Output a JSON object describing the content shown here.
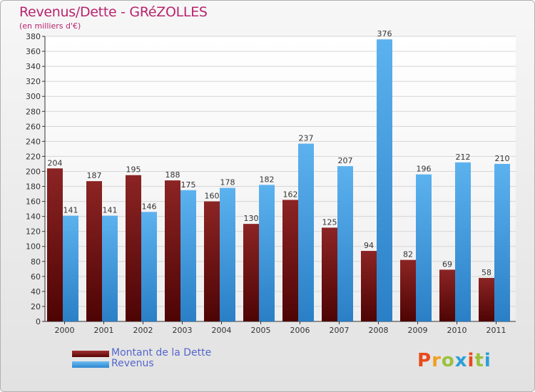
{
  "chart_data": {
    "type": "bar",
    "title": "Revenus/Dette - GRéZOLLES",
    "subtitle": "(en milliers d'€)",
    "categories": [
      "2000",
      "2001",
      "2002",
      "2003",
      "2004",
      "2005",
      "2006",
      "2007",
      "2008",
      "2009",
      "2010",
      "2011"
    ],
    "series": [
      {
        "name": "Montant de la Dette",
        "color": "#7a1414",
        "values": [
          204,
          187,
          195,
          188,
          160,
          130,
          162,
          125,
          94,
          82,
          69,
          58
        ]
      },
      {
        "name": "Revenus",
        "color": "#4aa3e6",
        "values": [
          141,
          141,
          146,
          175,
          178,
          182,
          237,
          207,
          376,
          196,
          212,
          210
        ]
      }
    ],
    "ylim": [
      0,
      380
    ],
    "ytick_step": 20,
    "grid": true,
    "legend_position": "bottom-left"
  },
  "logo": {
    "text": "Proxiti",
    "colors": [
      "#e84a1c",
      "#f0a020",
      "#9ac13c",
      "#2c9fd8",
      "#e84a1c",
      "#9ac13c",
      "#2c9fd8"
    ]
  }
}
